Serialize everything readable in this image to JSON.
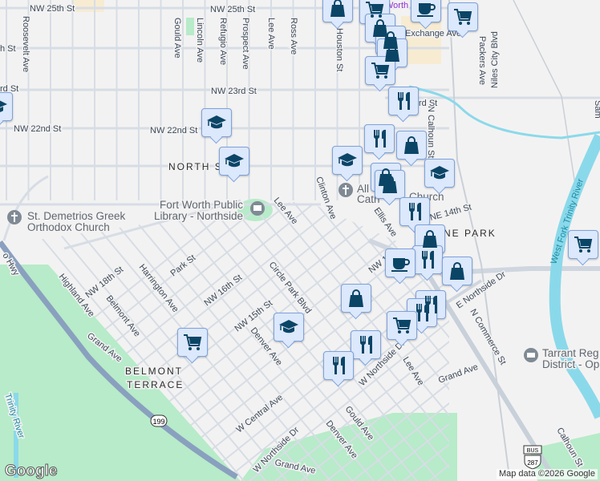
{
  "map": {
    "colors": {
      "background": "#f3f2f2",
      "road": "#d7dde5",
      "highway": "#8aa0bf",
      "park": "#b7ebc9",
      "water": "#8ad9ea",
      "pin_fill": "#dce8fb",
      "pin_icon": "#0b4566"
    },
    "streets": {
      "nw25": "NW 25th St",
      "nw25b": "NW 25th St",
      "nw24": "h St",
      "nw23a": "rd St",
      "nw23": "NW 23rd St",
      "nw22": "NW 22nd St",
      "nw22b": "NW 22nd St",
      "north": "NORTH ST",
      "north2": "N",
      "roosevelt": "Roosevelt Ave",
      "gould": "Gould Ave",
      "lincoln": "Lincoln Ave",
      "refugio": "Refugio Ave",
      "prospect": "Prospect Ave",
      "lee": "Lee Ave",
      "ross": "Ross Ave",
      "houston": "Houston St",
      "exchange": "Exchange Ave",
      "packers": "Packers Ave",
      "niles": "Niles City Blvd",
      "ncalhoun": "N Calhoun St",
      "rd": "rd St",
      "clinton": "Clinton Ave",
      "ellis": "Ellis Ave",
      "ne14": "NE 14th St",
      "lee2": "Lee Ave",
      "circle": "Circle Park Blvd",
      "park": "Park St",
      "nw18": "NW 18th St",
      "harrington": "Harrington Ave",
      "highland": "Highland Ave",
      "belmont": "Belmont Ave",
      "nw16": "NW 16th St",
      "nw15": "NW 15th St",
      "denver": "Denver Ave",
      "grand": "Grand Ave",
      "wcentral": "W Central Ave",
      "wnorthside": "W Northside Dr",
      "wnorthside2": "W Northside Dr",
      "enorthside": "E Northside Dr",
      "ncommerce": "N Commerce St",
      "lee3": "Lee Ave",
      "grand2": "Grand Ave",
      "gould2": "Gould Ave",
      "denver2": "Denver Ave",
      "grand3": "Grand Ave",
      "calhoun": "Calhoun St",
      "hwy": "o Hwy",
      "nw1x": "NW 1",
      "trinity": "Trinity River",
      "westfork": "West Fork Trinity River",
      "sam": "Sam",
      "worth": "Worth"
    },
    "areas": {
      "belmont1": "BELMONT",
      "belmont2": "TERRACE",
      "nepark": "NE PARK"
    },
    "pois": {
      "library1": "Fort Worth Public",
      "library2": "Library - Northside",
      "church1": "St. Demetrios Greek",
      "church2": "Orthodox Church",
      "cath1": "All",
      "cath2": "Cath",
      "cath3": "Church",
      "tarrant1": "Tarrant Reg",
      "tarrant2": "District - Op"
    },
    "shields": {
      "hwy199": "199",
      "bus": "BUS",
      "us287": "287"
    },
    "markers": [
      "shopping-bag",
      "shopping-cart",
      "coffee",
      "shopping-cart",
      "shopping-bag",
      "shopping-bag",
      "shopping-bag",
      "shopping-cart",
      "restaurant",
      "restaurant",
      "shopping-bag",
      "school",
      "school",
      "shopping-bag",
      "shopping-bag",
      "restaurant",
      "shopping-bag",
      "shopping-cart",
      "restaurant",
      "coffee",
      "shopping-bag",
      "shopping-bag",
      "restaurant",
      "restaurant",
      "shopping-cart",
      "restaurant",
      "restaurant",
      "school",
      "school",
      "school",
      "shopping-cart",
      "school"
    ],
    "attribution": "Map data ©2026 Google",
    "logo": "Google"
  }
}
